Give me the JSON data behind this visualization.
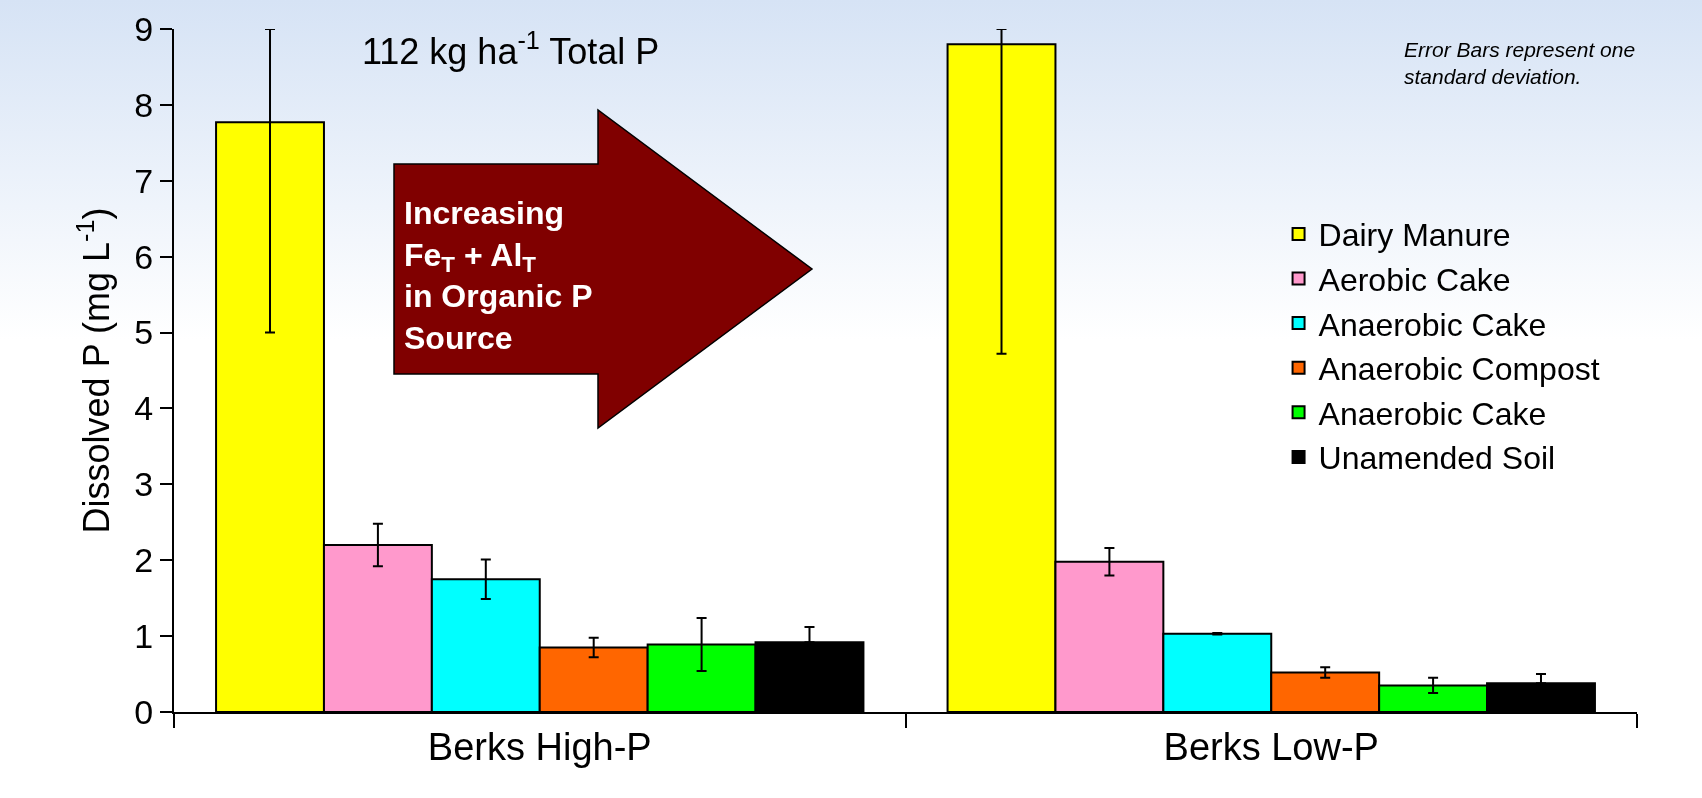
{
  "chart_data": {
    "type": "bar",
    "title": "112 kg ha$^{-1}$ Total P",
    "categories": [
      "Berks High-P",
      "Berks Low-P"
    ],
    "ylabel": "Dissolved P (mg L$^{-1}$)",
    "ylim": [
      0,
      9
    ],
    "yticks": [
      0,
      1,
      2,
      3,
      4,
      5,
      6,
      7,
      8,
      9
    ],
    "grid": false,
    "legend": "right",
    "annotations": [
      "Error Bars represent one\nstandard deviation.",
      "Increasing\nFe$_{T}$ + Al$_{T}$\nin Organic P\nSource"
    ],
    "series": [
      {
        "name": "Dairy Manure",
        "color": "#ffff00",
        "values": [
          7.77,
          8.8
        ],
        "errors": [
          [
            5.0,
            9.0
          ],
          [
            4.72,
            9.0
          ]
        ]
      },
      {
        "name": "Aerobic Cake",
        "color": "#ff99cc",
        "values": [
          2.2,
          1.98
        ],
        "errors": [
          [
            1.92,
            2.48
          ],
          [
            1.8,
            2.16
          ]
        ]
      },
      {
        "name": "Anaerobic Cake",
        "color": "#00ffff",
        "values": [
          1.75,
          1.03
        ],
        "errors": [
          [
            1.49,
            2.01
          ],
          [
            1.02,
            1.04
          ]
        ]
      },
      {
        "name": "Anaerobic Compost",
        "color": "#ff6600",
        "values": [
          0.85,
          0.52
        ],
        "errors": [
          [
            0.72,
            0.98
          ],
          [
            0.45,
            0.59
          ]
        ]
      },
      {
        "name": "Anaerobic Cake",
        "color": "#00ff00",
        "values": [
          0.89,
          0.35
        ],
        "errors": [
          [
            0.54,
            1.24
          ],
          [
            0.25,
            0.45
          ]
        ]
      },
      {
        "name": "Unamended Soil",
        "color": "#000000",
        "values": [
          0.92,
          0.38
        ],
        "errors": [
          [
            0.92,
            1.12
          ],
          [
            0.38,
            0.5
          ]
        ]
      }
    ]
  }
}
